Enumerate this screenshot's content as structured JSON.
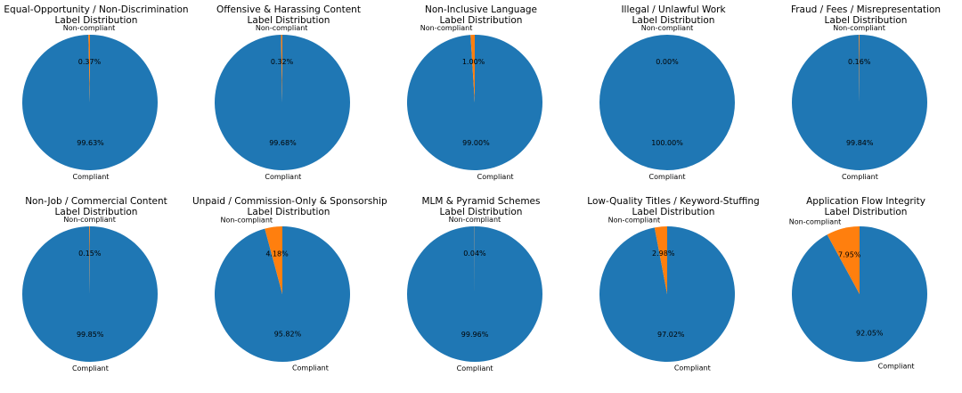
{
  "chart_data": [
    {
      "type": "pie",
      "title": "Equal-Opportunity / Non-Discrimination",
      "subtitle": "Label Distribution",
      "labels": [
        "Compliant",
        "Non-compliant"
      ],
      "values": [
        99.63,
        0.37
      ],
      "pct_labels": [
        "99.63%",
        "0.37%"
      ]
    },
    {
      "type": "pie",
      "title": "Offensive & Harassing Content",
      "subtitle": "Label Distribution",
      "labels": [
        "Compliant",
        "Non-compliant"
      ],
      "values": [
        99.68,
        0.32
      ],
      "pct_labels": [
        "99.68%",
        "0.32%"
      ]
    },
    {
      "type": "pie",
      "title": "Non-Inclusive Language",
      "subtitle": "Label Distribution",
      "labels": [
        "Compliant",
        "Non-compliant"
      ],
      "values": [
        99.0,
        1.0
      ],
      "pct_labels": [
        "99.00%",
        "1.00%"
      ]
    },
    {
      "type": "pie",
      "title": "Illegal / Unlawful Work",
      "subtitle": "Label Distribution",
      "labels": [
        "Compliant",
        "Non-compliant"
      ],
      "values": [
        100.0,
        0.0
      ],
      "pct_labels": [
        "100.00%",
        "0.00%"
      ]
    },
    {
      "type": "pie",
      "title": "Fraud / Fees / Misrepresentation",
      "subtitle": "Label Distribution",
      "labels": [
        "Compliant",
        "Non-compliant"
      ],
      "values": [
        99.84,
        0.16
      ],
      "pct_labels": [
        "99.84%",
        "0.16%"
      ]
    },
    {
      "type": "pie",
      "title": "Non-Job / Commercial Content",
      "subtitle": "Label Distribution",
      "labels": [
        "Compliant",
        "Non-compliant"
      ],
      "values": [
        99.85,
        0.15
      ],
      "pct_labels": [
        "99.85%",
        "0.15%"
      ]
    },
    {
      "type": "pie",
      "title": "Unpaid / Commission-Only & Sponsorship",
      "subtitle": "Label Distribution",
      "labels": [
        "Compliant",
        "Non-compliant"
      ],
      "values": [
        95.82,
        4.18
      ],
      "pct_labels": [
        "95.82%",
        "4.18%"
      ]
    },
    {
      "type": "pie",
      "title": "MLM & Pyramid Schemes",
      "subtitle": "Label Distribution",
      "labels": [
        "Compliant",
        "Non-compliant"
      ],
      "values": [
        99.96,
        0.04
      ],
      "pct_labels": [
        "99.96%",
        "0.04%"
      ]
    },
    {
      "type": "pie",
      "title": "Low-Quality Titles / Keyword-Stuffing",
      "subtitle": "Label Distribution",
      "labels": [
        "Compliant",
        "Non-compliant"
      ],
      "values": [
        97.02,
        2.98
      ],
      "pct_labels": [
        "97.02%",
        "2.98%"
      ]
    },
    {
      "type": "pie",
      "title": "Application Flow Integrity",
      "subtitle": "Label Distribution",
      "labels": [
        "Compliant",
        "Non-compliant"
      ],
      "values": [
        92.05,
        7.95
      ],
      "pct_labels": [
        "92.05%",
        "7.95%"
      ]
    }
  ],
  "colors": {
    "Compliant": "#1f77b4",
    "Non-compliant": "#ff7f0e"
  }
}
